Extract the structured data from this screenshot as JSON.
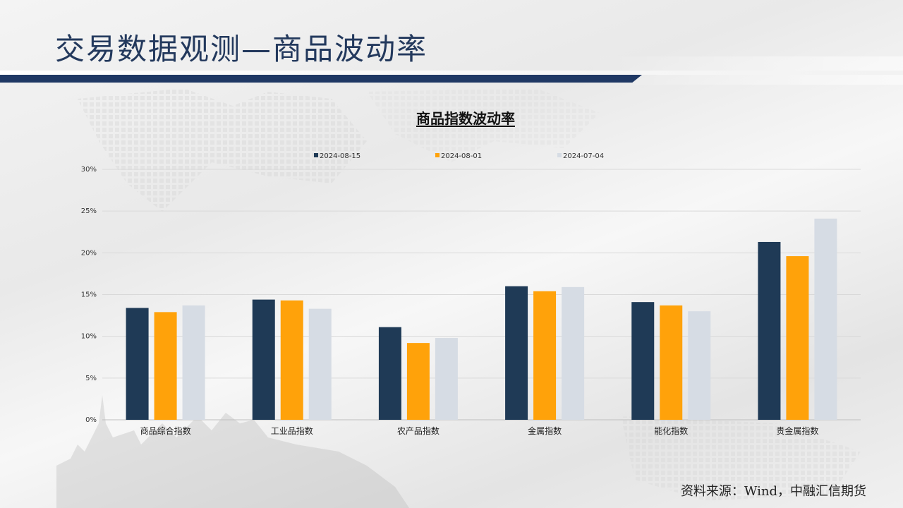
{
  "slide": {
    "title": "交易数据观测—商品波动率",
    "source": "资料来源：Wind，中融汇信期货"
  },
  "colors": {
    "title": "#23395d",
    "title_bar": "#1f3864",
    "series": [
      "#1f3a56",
      "#ffa20a",
      "#d6dce4"
    ],
    "grid": "#d9d9d9"
  },
  "chart_data": {
    "type": "bar",
    "title": "商品指数波动率",
    "categories": [
      "商品综合指数",
      "工业品指数",
      "农产品指数",
      "金属指数",
      "能化指数",
      "贵金属指数"
    ],
    "series": [
      {
        "name": "2024-08-15",
        "values": [
          13.4,
          14.4,
          11.1,
          16.0,
          14.1,
          21.3
        ]
      },
      {
        "name": "2024-08-01",
        "values": [
          12.9,
          14.3,
          9.2,
          15.4,
          13.7,
          19.6
        ]
      },
      {
        "name": "2024-07-04",
        "values": [
          13.7,
          13.3,
          9.8,
          15.9,
          13.0,
          24.1
        ]
      }
    ],
    "ylim": [
      0,
      30
    ],
    "yticks": [
      "0%",
      "5%",
      "10%",
      "15%",
      "20%",
      "25%",
      "30%"
    ],
    "ytick_values": [
      0,
      5,
      10,
      15,
      20,
      25,
      30
    ],
    "grid": true,
    "legend_position": "top"
  }
}
